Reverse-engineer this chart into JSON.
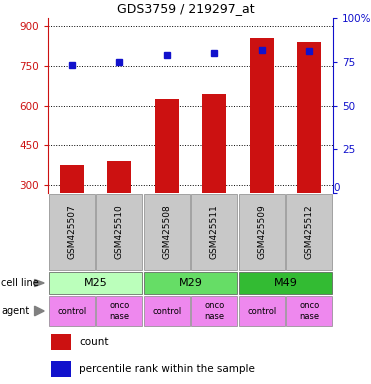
{
  "title": "GDS3759 / 219297_at",
  "samples": [
    "GSM425507",
    "GSM425510",
    "GSM425508",
    "GSM425511",
    "GSM425509",
    "GSM425512"
  ],
  "counts": [
    375,
    390,
    625,
    645,
    855,
    840
  ],
  "percentile_ranks": [
    73,
    75,
    79,
    80,
    82,
    81
  ],
  "cell_lines": [
    {
      "label": "M25",
      "start": 0,
      "end": 2,
      "color": "#bbffbb"
    },
    {
      "label": "M29",
      "start": 2,
      "end": 4,
      "color": "#66dd66"
    },
    {
      "label": "M49",
      "start": 4,
      "end": 6,
      "color": "#33bb33"
    }
  ],
  "bar_color": "#cc1111",
  "dot_color": "#1111cc",
  "ylim_left": [
    270,
    930
  ],
  "yticks_left": [
    300,
    450,
    600,
    750,
    900
  ],
  "ylim_right": [
    0,
    100
  ],
  "yticks_right": [
    0,
    25,
    50,
    75,
    100
  ],
  "background_color": "#ffffff",
  "sample_box_color": "#c8c8c8",
  "agent_color": "#ee88ee",
  "agent_labels": [
    "control",
    "onco\nnase",
    "control",
    "onco\nnase",
    "control",
    "onco\nnase"
  ]
}
